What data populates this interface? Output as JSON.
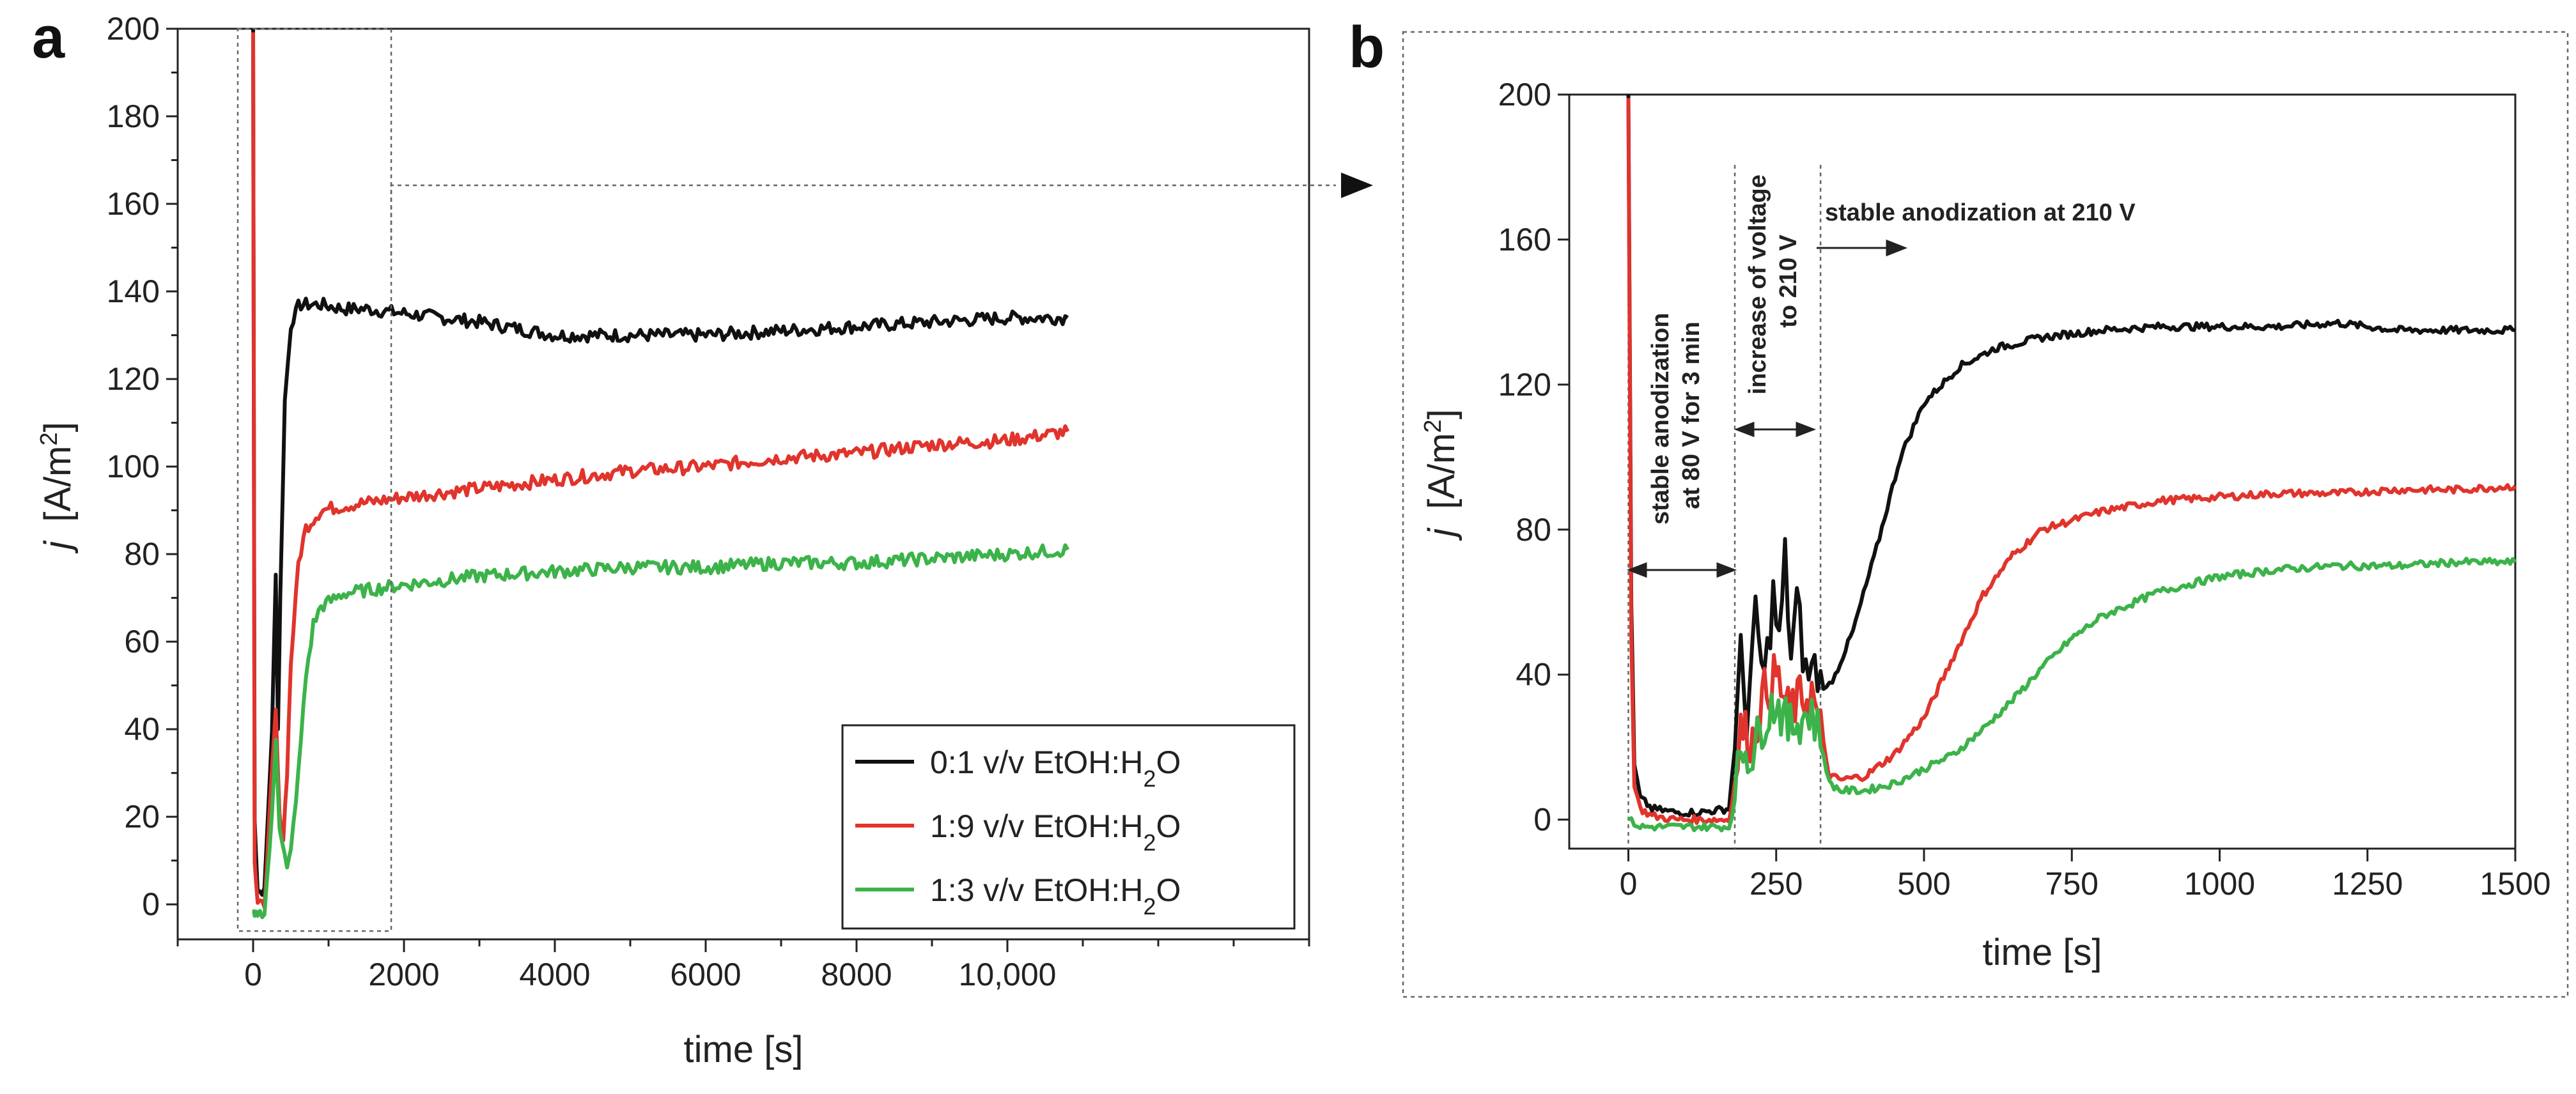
{
  "panel_a_letter": "a",
  "panel_b_letter": "b",
  "chart_data": [
    {
      "type": "line",
      "panel": "a",
      "xlabel": "time [s]",
      "ylabel": "j [A/m2]",
      "ylabel_main": "j",
      "ylabel_unit_prefix": "[A/m",
      "ylabel_unit_sup": "2",
      "ylabel_unit_suffix": "]",
      "xlim": [
        -1000,
        14000
      ],
      "ylim": [
        -8,
        200
      ],
      "xticks": [
        0,
        2000,
        4000,
        6000,
        8000,
        10000
      ],
      "xtick_labels": [
        "0",
        "2000",
        "4000",
        "6000",
        "8000",
        "10,000"
      ],
      "yticks": [
        0,
        20,
        40,
        60,
        80,
        100,
        120,
        140,
        160,
        180,
        200
      ],
      "ytick_labels": [
        "0",
        "20",
        "40",
        "60",
        "80",
        "100",
        "120",
        "140",
        "160",
        "180",
        "200"
      ],
      "legend_position": "lower-right",
      "series": [
        {
          "name": "0:1 v/v EtOH:H2O",
          "label_main": "0:1 v/v EtOH:H",
          "label_sub": "2",
          "label_tail": "O",
          "color": "#111111",
          "x": [
            0,
            20,
            60,
            150,
            250,
            300,
            330,
            360,
            420,
            500,
            600,
            700,
            900,
            1200,
            1500,
            2000,
            3000,
            4000,
            5000,
            6000,
            7000,
            8000,
            9000,
            10000,
            10800
          ],
          "y": [
            200,
            20,
            3,
            3,
            40,
            75,
            40,
            70,
            115,
            132,
            137,
            137,
            137,
            136,
            136,
            135,
            133,
            130,
            130,
            130,
            131,
            132,
            133,
            134,
            134
          ]
        },
        {
          "name": "1:9 v/v EtOH:H2O",
          "label_main": "1:9 v/v EtOH:H",
          "label_sub": "2",
          "label_tail": "O",
          "color": "#e0342c",
          "x": [
            0,
            20,
            60,
            150,
            250,
            300,
            350,
            400,
            450,
            500,
            600,
            700,
            900,
            1200,
            2000,
            3000,
            4000,
            5000,
            6000,
            7000,
            8000,
            9000,
            10000,
            10800
          ],
          "y": [
            200,
            10,
            0,
            0,
            30,
            44,
            20,
            15,
            30,
            55,
            78,
            86,
            90,
            91,
            93,
            95,
            97,
            99,
            100,
            102,
            103,
            105,
            106,
            108
          ]
        },
        {
          "name": "1:3 v/v EtOH:H2O",
          "label_main": "1:3 v/v EtOH:H",
          "label_sub": "2",
          "label_tail": "O",
          "color": "#3cb34a",
          "x": [
            0,
            20,
            60,
            150,
            250,
            300,
            350,
            450,
            500,
            600,
            700,
            800,
            900,
            1200,
            2000,
            3000,
            4000,
            5000,
            6000,
            7000,
            8000,
            9000,
            10000,
            10800
          ],
          "y": [
            -2,
            -3,
            -2,
            -2,
            20,
            38,
            18,
            8,
            12,
            30,
            52,
            64,
            68,
            71,
            73,
            75,
            76,
            77,
            77,
            78,
            78,
            79,
            80,
            81
          ]
        }
      ]
    },
    {
      "type": "line",
      "panel": "b",
      "xlabel": "time [s]",
      "ylabel": "j [A/m2]",
      "ylabel_main": "j",
      "ylabel_unit_prefix": "[A/m",
      "ylabel_unit_sup": "2",
      "ylabel_unit_suffix": "]",
      "xlim": [
        -100,
        1500
      ],
      "ylim": [
        -8,
        200
      ],
      "xticks": [
        0,
        250,
        500,
        750,
        1000,
        1250,
        1500
      ],
      "xtick_labels": [
        "0",
        "250",
        "500",
        "750",
        "1000",
        "1250",
        "1500"
      ],
      "yticks": [
        0,
        40,
        80,
        120,
        160,
        200
      ],
      "ytick_labels": [
        "0",
        "40",
        "80",
        "120",
        "160",
        "200"
      ],
      "boundaries": [
        0,
        180,
        325
      ],
      "annotations": {
        "stage1_line1": "stable anodization",
        "stage1_line2": "at 80 V for 3 min",
        "stage2_line1": "increase of voltage",
        "stage2_line2": "to 210 V",
        "stage3": "stable anodization at 210 V"
      },
      "series": [
        {
          "name": "0:1 v/v EtOH:H2O",
          "color": "#111111",
          "x": [
            0,
            5,
            10,
            20,
            40,
            80,
            120,
            170,
            180,
            190,
            200,
            215,
            230,
            245,
            255,
            265,
            275,
            285,
            300,
            315,
            325,
            335,
            350,
            380,
            420,
            460,
            500,
            560,
            620,
            700,
            800,
            900,
            1000,
            1100,
            1200,
            1250,
            1300,
            1400,
            1500
          ],
          "y": [
            200,
            60,
            15,
            6,
            3,
            2,
            2,
            3,
            20,
            45,
            28,
            55,
            38,
            62,
            48,
            72,
            45,
            60,
            40,
            42,
            38,
            36,
            40,
            52,
            75,
            100,
            115,
            125,
            130,
            133,
            135,
            136,
            136,
            136,
            137,
            136,
            135,
            135,
            135
          ]
        },
        {
          "name": "1:9 v/v EtOH:H2O",
          "color": "#e0342c",
          "x": [
            0,
            5,
            10,
            20,
            40,
            80,
            120,
            170,
            180,
            190,
            210,
            230,
            250,
            270,
            290,
            310,
            325,
            340,
            360,
            400,
            450,
            500,
            550,
            600,
            650,
            700,
            800,
            900,
            1000,
            1100,
            1200,
            1300,
            1400,
            1500
          ],
          "y": [
            200,
            50,
            10,
            3,
            1,
            0,
            0,
            0,
            10,
            25,
            22,
            35,
            40,
            30,
            33,
            35,
            25,
            12,
            11,
            12,
            18,
            28,
            45,
            62,
            73,
            80,
            85,
            88,
            89,
            90,
            90,
            91,
            91,
            92
          ]
        },
        {
          "name": "1:3 v/v EtOH:H2O",
          "color": "#3cb34a",
          "x": [
            0,
            10,
            20,
            40,
            80,
            120,
            170,
            180,
            190,
            210,
            230,
            250,
            270,
            290,
            310,
            325,
            340,
            360,
            400,
            450,
            500,
            550,
            600,
            650,
            700,
            750,
            800,
            900,
            1000,
            1100,
            1200,
            1300,
            1400,
            1500
          ],
          "y": [
            0,
            -1,
            -2,
            -2,
            -2,
            -2,
            -2,
            5,
            20,
            18,
            28,
            33,
            25,
            28,
            30,
            22,
            10,
            8,
            8,
            10,
            14,
            18,
            25,
            33,
            42,
            50,
            56,
            63,
            67,
            69,
            70,
            70,
            71,
            71
          ]
        }
      ]
    }
  ]
}
